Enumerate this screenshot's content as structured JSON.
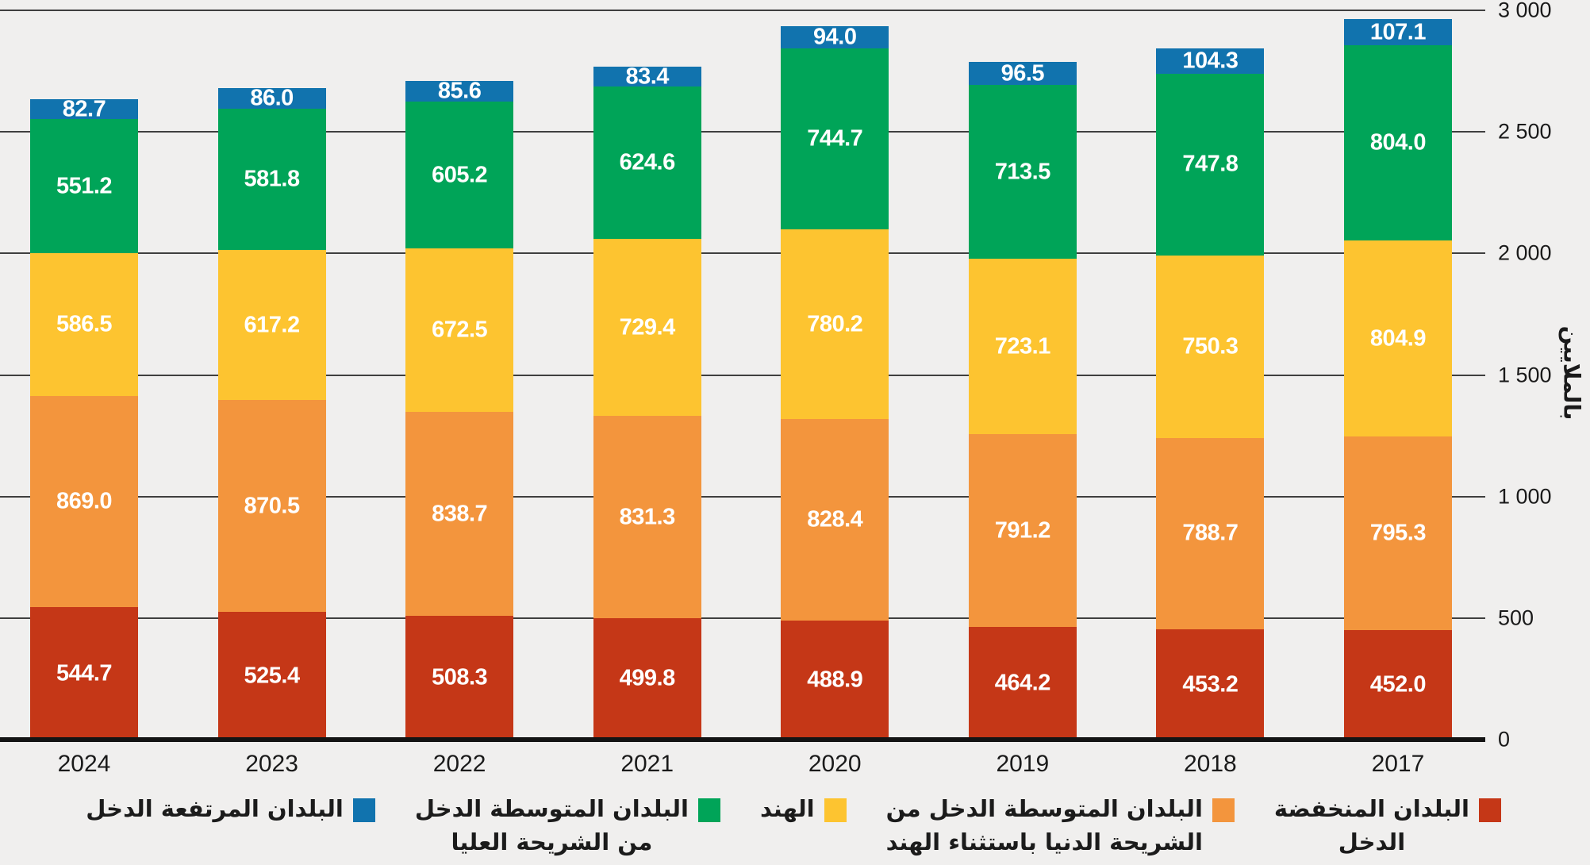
{
  "chart_data": {
    "type": "bar",
    "stacked": true,
    "orientation": "vertical",
    "categories": [
      "2024",
      "2023",
      "2022",
      "2021",
      "2020",
      "2019",
      "2018",
      "2017"
    ],
    "series": [
      {
        "name": "البلدان المنخفضة الدخل",
        "color": "#c53717",
        "values": [
          544.7,
          525.4,
          508.3,
          499.8,
          488.9,
          464.2,
          453.2,
          452.0
        ]
      },
      {
        "name": "البلدان المتوسطة الدخل من الشريحة الدنيا باستثناء الهند",
        "color": "#f3953d",
        "values": [
          869.0,
          870.5,
          838.7,
          831.3,
          828.4,
          791.2,
          788.7,
          795.3
        ]
      },
      {
        "name": "الهند",
        "color": "#fdc430",
        "values": [
          586.5,
          617.2,
          672.5,
          729.4,
          780.2,
          723.1,
          750.3,
          804.9
        ]
      },
      {
        "name": "البلدان المتوسطة الدخل من الشريحة العليا",
        "color": "#00a458",
        "values": [
          551.2,
          581.8,
          605.2,
          624.6,
          744.7,
          713.5,
          747.8,
          804.0
        ]
      },
      {
        "name": "البلدان المرتفعة الدخل",
        "color": "#1173ae",
        "values": [
          82.7,
          86.0,
          85.6,
          83.4,
          94.0,
          96.5,
          104.3,
          107.1
        ]
      }
    ],
    "title": "",
    "xlabel": "",
    "ylabel": "بالملايين",
    "ylim": [
      0,
      3000
    ],
    "yticks": [
      {
        "label": "0",
        "value": 0
      },
      {
        "label": "500",
        "value": 500
      },
      {
        "label": "1 000",
        "value": 1000
      },
      {
        "label": "1 500",
        "value": 1500
      },
      {
        "label": "2 000",
        "value": 2000
      },
      {
        "label": "2 500",
        "value": 2500
      },
      {
        "label": "3 000",
        "value": 3000
      }
    ],
    "grid": true,
    "value_label_decimals": 1,
    "value_label_color": "#ffffff",
    "legend_position": "bottom"
  },
  "legend": {
    "items": [
      {
        "lines": [
          "البلدان المنخفضة",
          "الدخل"
        ]
      },
      {
        "lines": [
          "البلدان المتوسطة الدخل من",
          "الشريحة الدنيا باستثناء الهند"
        ]
      },
      {
        "lines": [
          "الهند"
        ]
      },
      {
        "lines": [
          "البلدان المتوسطة الدخل",
          "من الشريحة العليا"
        ]
      },
      {
        "lines": [
          "البلدان المرتفعة الدخل"
        ]
      }
    ]
  },
  "colors": {
    "background": "#f0efee",
    "gridline": "#3f3f3f",
    "baseline": "#141414",
    "text": "#1a1a1a"
  }
}
